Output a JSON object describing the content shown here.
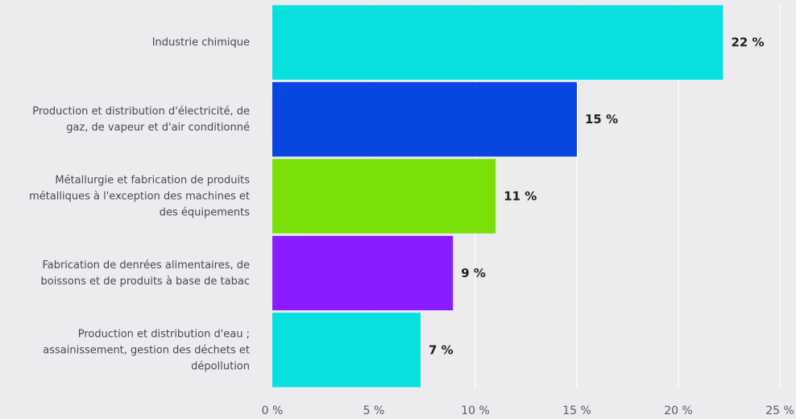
{
  "chart_data": {
    "type": "bar",
    "orientation": "horizontal",
    "categories": [
      [
        "Industrie chimique"
      ],
      [
        "Production et distribution d'électricité, de",
        "gaz, de vapeur et d'air conditionné"
      ],
      [
        "Métallurgie et fabrication de produits",
        "métalliques à l'exception des machines et",
        "des équipements"
      ],
      [
        "Fabrication de denrées alimentaires, de",
        "boissons et de produits à base de tabac"
      ],
      [
        "Production et distribution d'eau ;",
        "assainissement, gestion des déchets et",
        "dépollution"
      ]
    ],
    "values": [
      22.2,
      15.0,
      11.0,
      8.9,
      7.3
    ],
    "value_labels": [
      "22 %",
      "15 %",
      "11 %",
      "9 %",
      "7 %"
    ],
    "colors": [
      "#08e0e0",
      "#0846e0",
      "#7ae008",
      "#8a1cff",
      "#08e0e0"
    ],
    "xlim": [
      0,
      25
    ],
    "ticks": [
      0,
      5,
      10,
      15,
      20,
      25
    ],
    "tick_labels": [
      "0 %",
      "5 %",
      "10 %",
      "15 %",
      "20 %",
      "25 %"
    ],
    "grid": true,
    "title": "",
    "xlabel": "",
    "ylabel": ""
  }
}
